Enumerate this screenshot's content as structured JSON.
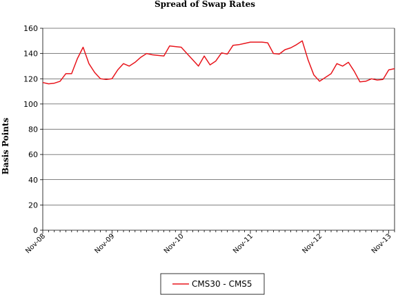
{
  "chart_data": {
    "type": "line",
    "title": "Spread of Swap Rates",
    "xlabel": "",
    "ylabel": "Basis Points",
    "ylim": [
      0,
      160
    ],
    "yticks": [
      0,
      20,
      40,
      60,
      80,
      100,
      120,
      140,
      160
    ],
    "grid": true,
    "legend_position": "bottom-center",
    "x_tick_labels": [
      "Nov-08",
      "Nov-09",
      "Nov-10",
      "Nov-11",
      "Nov-12",
      "Nov-13"
    ],
    "x": [
      "2008-11",
      "2008-12",
      "2009-01",
      "2009-02",
      "2009-03",
      "2009-04",
      "2009-05",
      "2009-06",
      "2009-07",
      "2009-08",
      "2009-09",
      "2009-10",
      "2009-11",
      "2009-12",
      "2010-01",
      "2010-02",
      "2010-03",
      "2010-04",
      "2010-05",
      "2010-06",
      "2010-07",
      "2010-08",
      "2010-09",
      "2010-10",
      "2010-11",
      "2010-12",
      "2011-01",
      "2011-02",
      "2011-03",
      "2011-04",
      "2011-05",
      "2011-06",
      "2011-07",
      "2011-08",
      "2011-09",
      "2011-10",
      "2011-11",
      "2011-12",
      "2012-01",
      "2012-02",
      "2012-03",
      "2012-04",
      "2012-05",
      "2012-06",
      "2012-07",
      "2012-08",
      "2012-09",
      "2012-10",
      "2012-11",
      "2012-12",
      "2013-01",
      "2013-02",
      "2013-03",
      "2013-04",
      "2013-05",
      "2013-06",
      "2013-07",
      "2013-08",
      "2013-09",
      "2013-10",
      "2013-11",
      "2013-12"
    ],
    "series": [
      {
        "name": "CMS30 - CMS5",
        "color": "#e8141b",
        "values": [
          117,
          116,
          116.5,
          118,
          124,
          124,
          136,
          145,
          132,
          125,
          120,
          119.5,
          120,
          127,
          132,
          130,
          133,
          137,
          140,
          139,
          138.5,
          138,
          146,
          145.5,
          145,
          140,
          135,
          130,
          138,
          131,
          134,
          140.5,
          139.5,
          146.5,
          147,
          148,
          149,
          149,
          149,
          148.5,
          140,
          139.5,
          143,
          144.5,
          147,
          150,
          135,
          123,
          118,
          121,
          124,
          132,
          130,
          133,
          126,
          117.5,
          118,
          120,
          119,
          119.5,
          127,
          128
        ]
      }
    ]
  }
}
